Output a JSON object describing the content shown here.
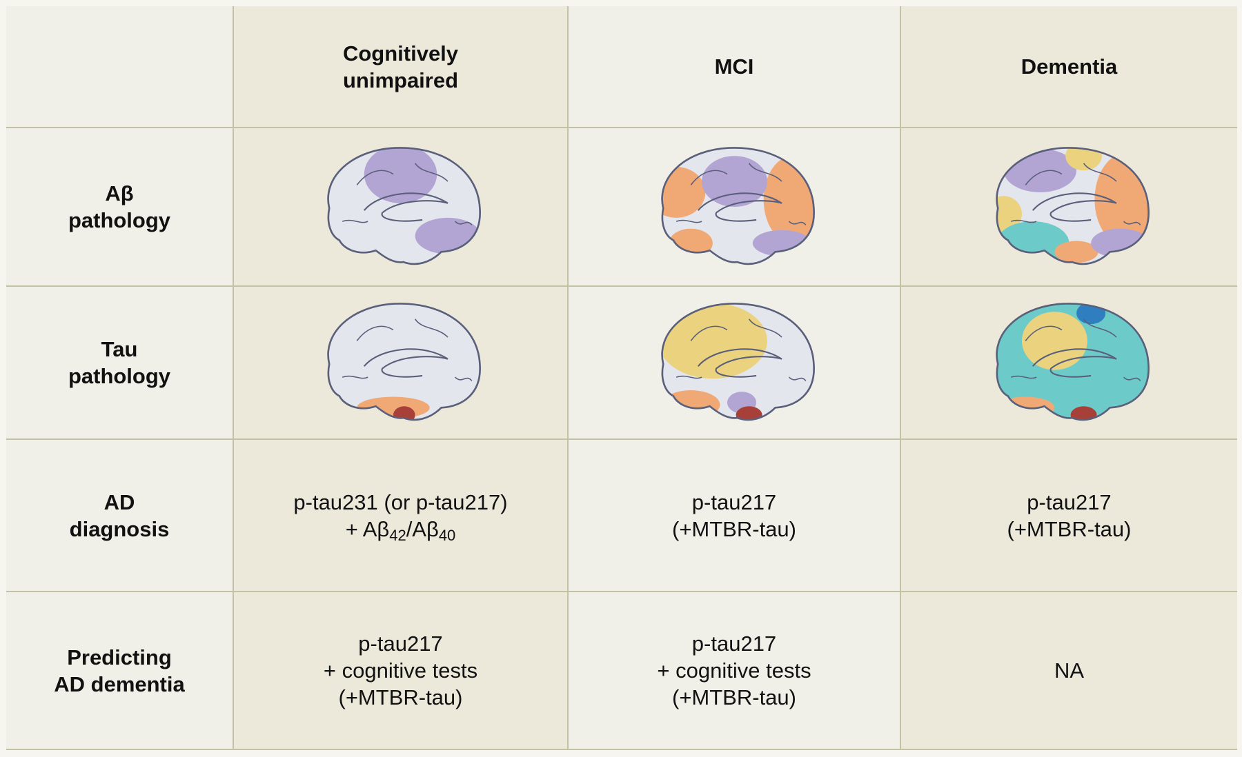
{
  "header": {
    "columns": [
      {
        "lines": [
          "Cognitively",
          "unimpaired"
        ]
      },
      {
        "lines": [
          "MCI"
        ]
      },
      {
        "lines": [
          "Dementia"
        ]
      }
    ]
  },
  "rows": [
    {
      "label": [
        "Aβ",
        "pathology"
      ]
    },
    {
      "label": [
        "Tau",
        "pathology"
      ]
    },
    {
      "label": [
        "AD",
        "diagnosis"
      ],
      "cells": [
        [
          [
            "p-tau231 (or p-tau217)"
          ],
          [
            "+ Aβ",
            {
              "sub": "42"
            },
            "/Aβ",
            {
              "sub": "40"
            }
          ]
        ],
        [
          [
            "p-tau217"
          ],
          [
            "(+MTBR-tau)"
          ]
        ],
        [
          [
            "p-tau217"
          ],
          [
            "(+MTBR-tau)"
          ]
        ]
      ]
    },
    {
      "label": [
        "Predicting",
        "AD dementia"
      ],
      "cells": [
        [
          [
            "p-tau217"
          ],
          [
            "+ cognitive tests"
          ],
          [
            "(+MTBR-tau)"
          ]
        ],
        [
          [
            "p-tau217"
          ],
          [
            "+ cognitive tests"
          ],
          [
            "(+MTBR-tau)"
          ]
        ],
        [
          [
            "NA"
          ]
        ]
      ]
    }
  ]
}
